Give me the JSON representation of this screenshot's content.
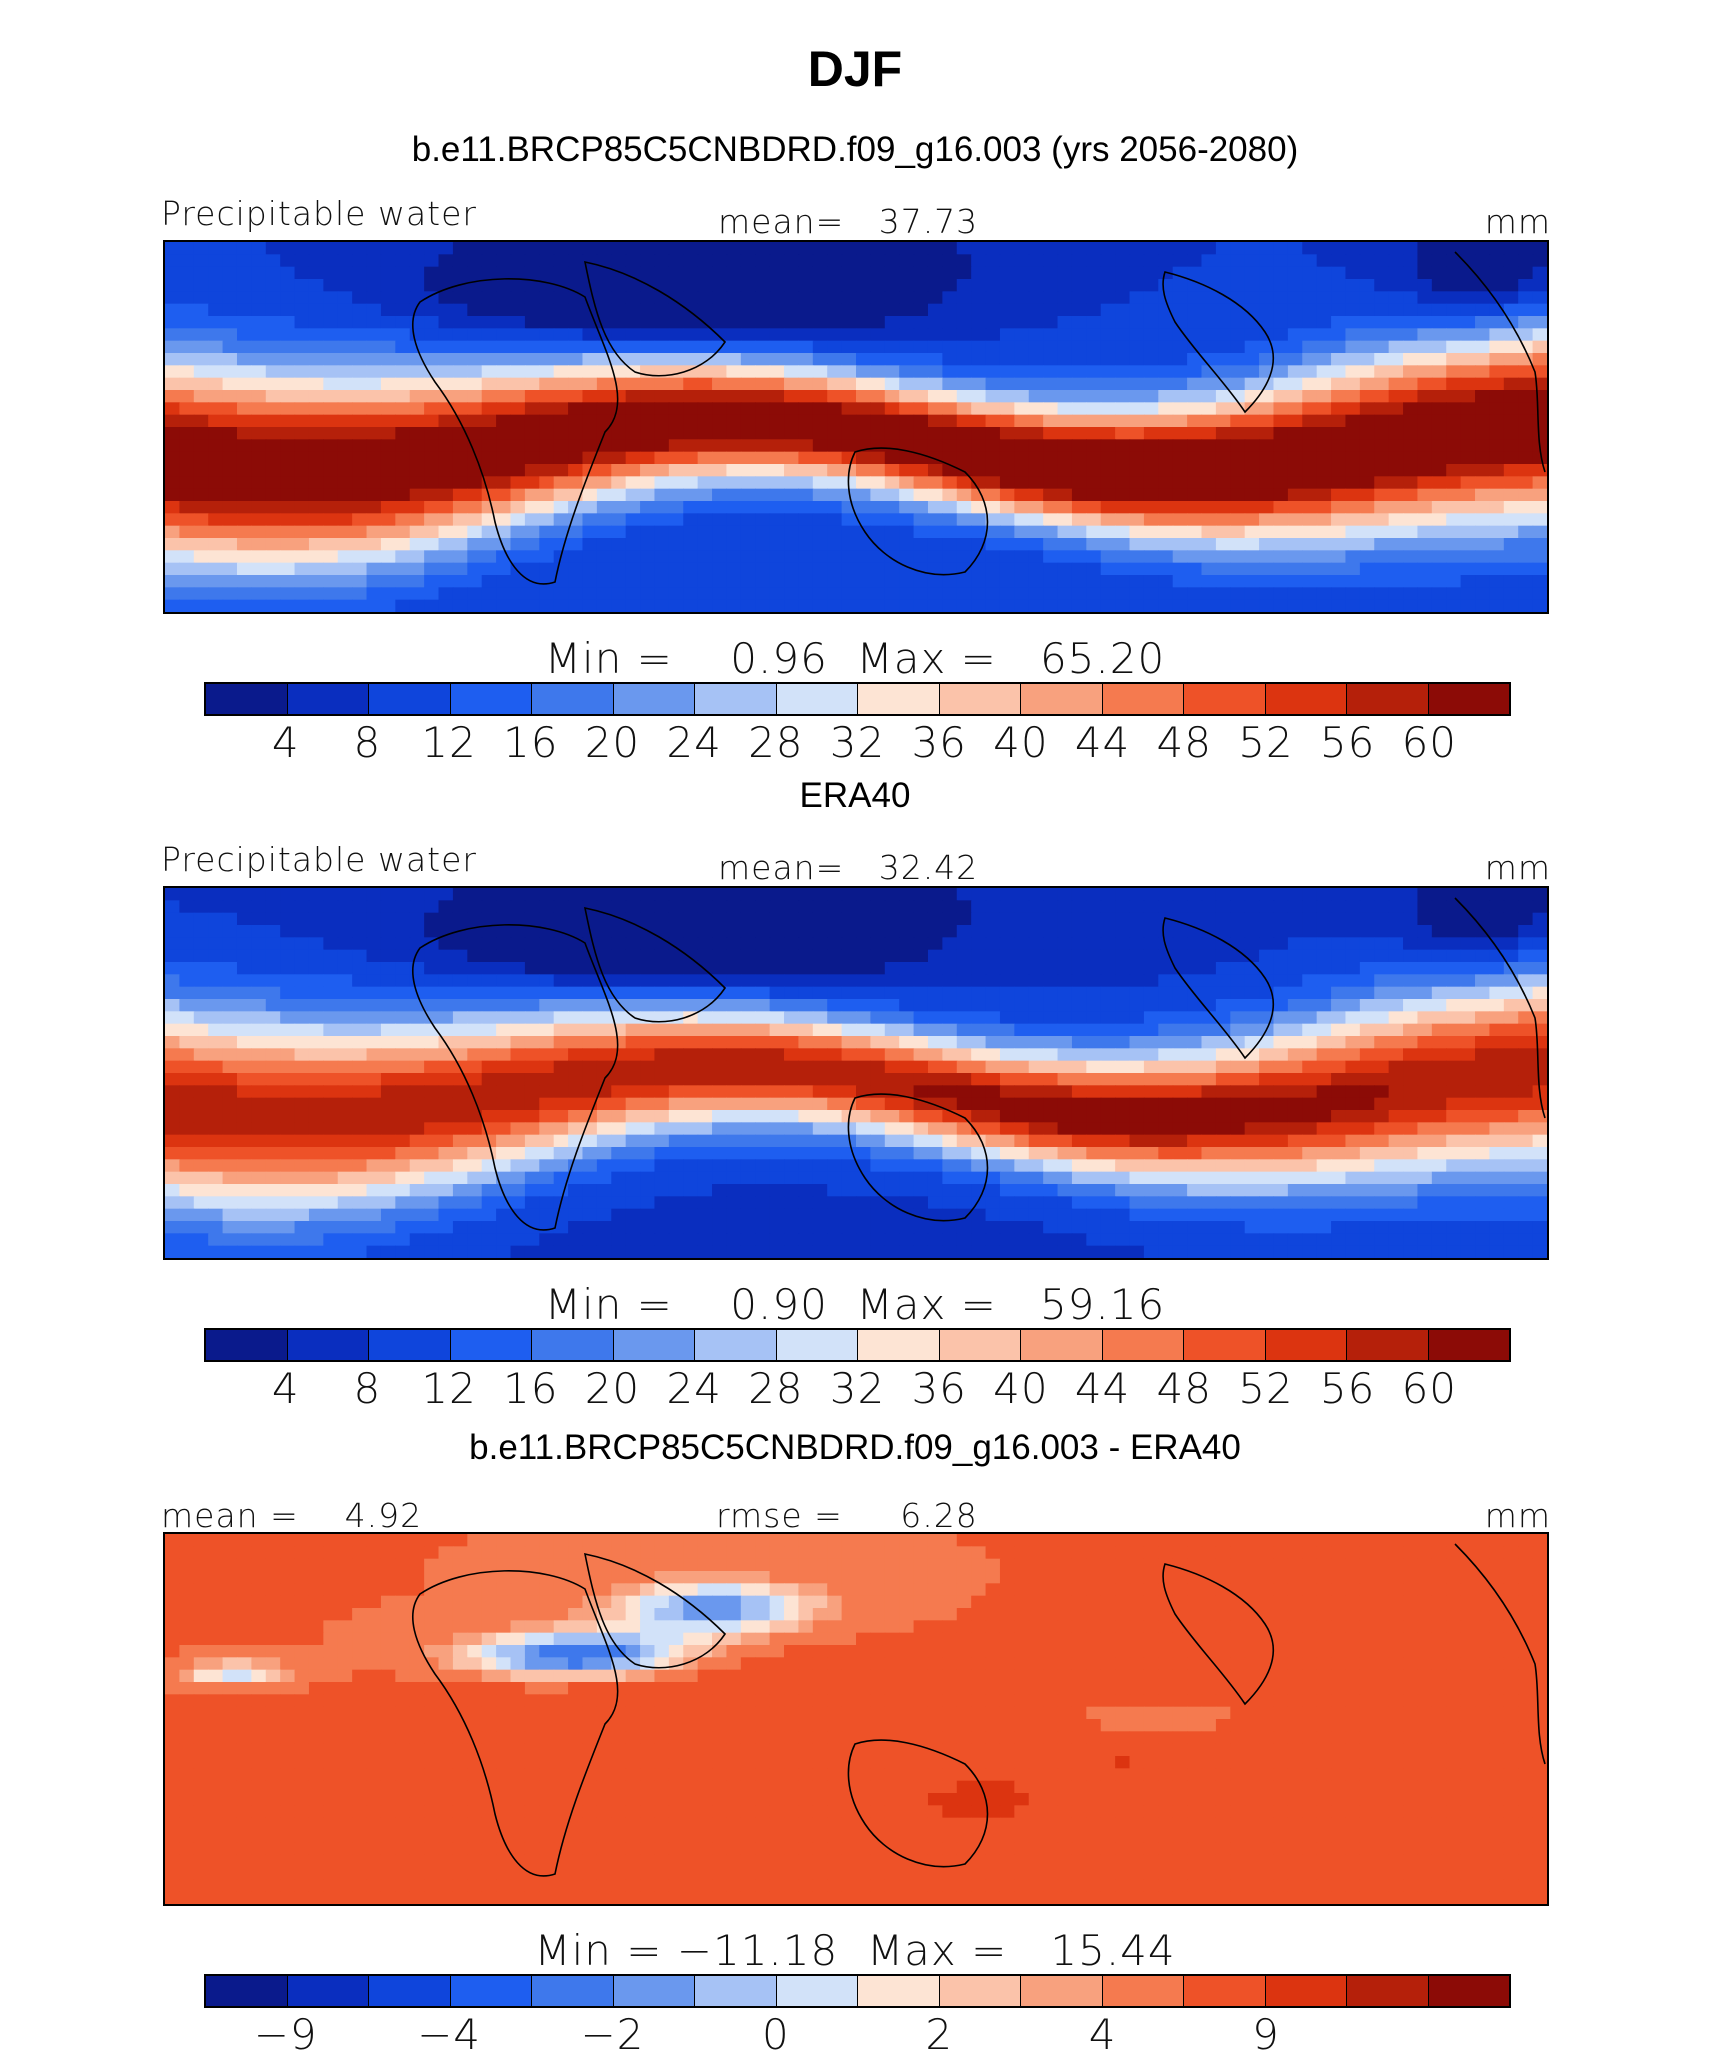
{
  "title": "DJF",
  "colors": [
    "#0a1a8c",
    "#0a2ebf",
    "#0f45dc",
    "#1e5ef0",
    "#3e78ec",
    "#6a98ee",
    "#a6c2f5",
    "#d2e2f9",
    "#fde4d4",
    "#fbc3aa",
    "#f8a17e",
    "#f57a4f",
    "#ee5228",
    "#dc3410",
    "#b5200a",
    "#8c0b06"
  ],
  "panels": [
    {
      "title": "b.e11.BRCP85C5CNBDRD.f09_g16.003 (yrs 2056-2080)",
      "left_label": "Precipitable water",
      "mid_label": "mean=   37.73",
      "right_label": "mm",
      "min_label": "Min =",
      "min_value": "0.96",
      "max_label": "Max =",
      "max_value": "65.20",
      "ticks": [
        "4",
        "8",
        "12",
        "16",
        "20",
        "24",
        "28",
        "32",
        "36",
        "40",
        "44",
        "48",
        "52",
        "56",
        "60"
      ],
      "field": "model"
    },
    {
      "title": "ERA40",
      "left_label": "Precipitable water",
      "mid_label": "mean=   32.42",
      "right_label": "mm",
      "min_label": "Min =",
      "min_value": "0.90",
      "max_label": "Max =",
      "max_value": "59.16",
      "ticks": [
        "4",
        "8",
        "12",
        "16",
        "20",
        "24",
        "28",
        "32",
        "36",
        "40",
        "44",
        "48",
        "52",
        "56",
        "60"
      ],
      "field": "obs"
    },
    {
      "title": "b.e11.BRCP85C5CNBDRD.f09_g16.003 - ERA40",
      "left_label": "mean =    4.92",
      "mid_label": "rmse =     6.28",
      "right_label": "mm",
      "min_label": "Min =",
      "min_value": "−11.18",
      "max_label": "Max =",
      "max_value": "15.44",
      "ticks": [
        "−9",
        "",
        "−4",
        "",
        "−2",
        "",
        "0",
        "",
        "2",
        "",
        "4",
        "",
        "9"
      ],
      "field": "diff"
    }
  ]
}
